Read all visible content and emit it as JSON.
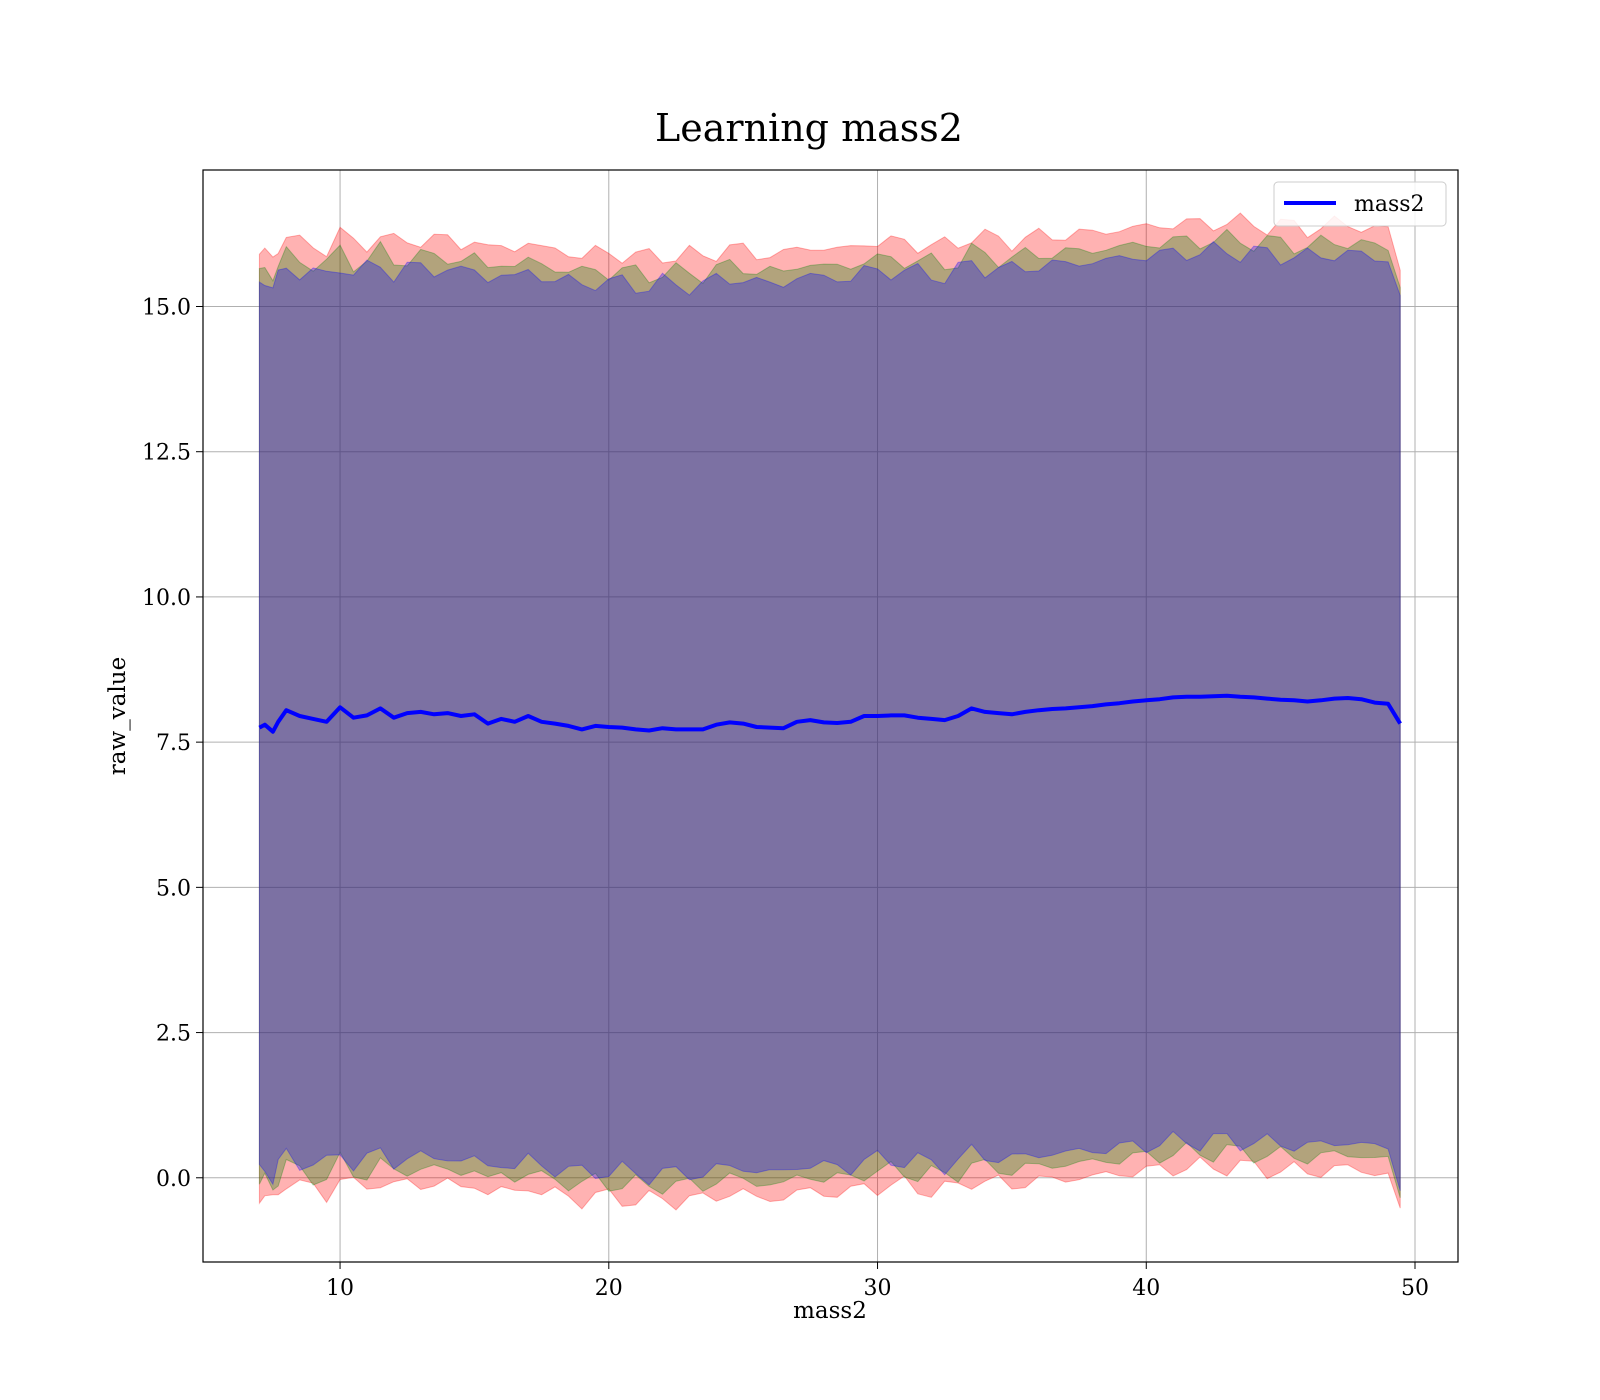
{
  "chart_data": {
    "type": "area",
    "title": "Learning mass2",
    "xlabel": "mass2",
    "ylabel": "raw_value",
    "xlim": [
      4.9,
      51.6
    ],
    "ylim": [
      -1.45,
      17.35
    ],
    "xticks": [
      10,
      20,
      30,
      40,
      50
    ],
    "xtick_labels": [
      "10",
      "20",
      "30",
      "40",
      "50"
    ],
    "yticks": [
      0.0,
      2.5,
      5.0,
      7.5,
      10.0,
      12.5,
      15.0
    ],
    "ytick_labels": [
      "0.0",
      "2.5",
      "5.0",
      "7.5",
      "10.0",
      "12.5",
      "15.0"
    ],
    "grid": true,
    "legend_position": "top-right",
    "x": [
      7.0,
      7.2,
      7.5,
      7.7,
      8.0,
      8.5,
      9.0,
      9.5,
      10.0,
      10.5,
      11.0,
      11.5,
      12.0,
      12.5,
      13.0,
      13.5,
      14.0,
      14.5,
      15.0,
      15.5,
      16.0,
      16.5,
      17.0,
      17.5,
      18.0,
      18.5,
      19.0,
      19.5,
      20.0,
      20.5,
      21.0,
      21.5,
      22.0,
      22.5,
      23.0,
      23.5,
      24.0,
      24.5,
      25.0,
      25.5,
      26.0,
      26.5,
      27.0,
      27.5,
      28.0,
      28.5,
      29.0,
      29.5,
      30.0,
      30.5,
      31.0,
      31.5,
      32.0,
      32.5,
      33.0,
      33.5,
      34.0,
      34.5,
      35.0,
      35.5,
      36.0,
      36.5,
      37.0,
      37.5,
      38.0,
      38.5,
      39.0,
      39.5,
      40.0,
      40.5,
      41.0,
      41.5,
      42.0,
      42.5,
      43.0,
      43.5,
      44.0,
      44.5,
      45.0,
      45.5,
      46.0,
      46.5,
      47.0,
      47.5,
      48.0,
      48.5,
      49.0,
      49.45
    ],
    "series": [
      {
        "name": "mass2",
        "color": "#0000ff",
        "values": [
          7.75,
          7.8,
          7.68,
          7.85,
          8.05,
          7.95,
          7.9,
          7.85,
          8.1,
          7.92,
          7.96,
          8.08,
          7.92,
          8.0,
          8.02,
          7.98,
          8.0,
          7.95,
          7.98,
          7.82,
          7.9,
          7.85,
          7.95,
          7.85,
          7.82,
          7.78,
          7.72,
          7.78,
          7.76,
          7.75,
          7.72,
          7.7,
          7.74,
          7.72,
          7.72,
          7.72,
          7.8,
          7.84,
          7.82,
          7.76,
          7.75,
          7.74,
          7.85,
          7.88,
          7.84,
          7.83,
          7.85,
          7.95,
          7.95,
          7.96,
          7.96,
          7.92,
          7.9,
          7.88,
          7.95,
          8.08,
          8.02,
          8.0,
          7.98,
          8.02,
          8.05,
          8.07,
          8.08,
          8.1,
          8.12,
          8.15,
          8.17,
          8.2,
          8.22,
          8.24,
          8.27,
          8.28,
          8.28,
          8.29,
          8.3,
          8.28,
          8.27,
          8.25,
          8.23,
          8.22,
          8.2,
          8.22,
          8.25,
          8.26,
          8.24,
          8.18,
          8.16,
          7.82
        ]
      }
    ],
    "bands": [
      {
        "color": "#ff0000",
        "opacity": 0.3,
        "lower_offset": -8.1,
        "upper_offset": 8.15
      },
      {
        "color": "#008000",
        "opacity": 0.3,
        "lower_offset": -7.85,
        "upper_offset": 7.85
      },
      {
        "color": "#0000ff",
        "opacity": 0.3,
        "lower_offset": -7.65,
        "upper_offset": 7.65
      }
    ]
  }
}
